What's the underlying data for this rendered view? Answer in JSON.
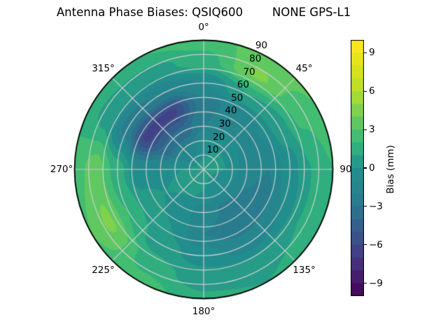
{
  "chart_data": {
    "type": "heatmap",
    "projection": "polar",
    "title": "Antenna Phase Biases: QSIQ600        NONE GPS-L1",
    "angular_axis": {
      "tick_labels": [
        "0°",
        "45°",
        "90",
        "135°",
        "180°",
        "225°",
        "270°",
        "315°"
      ],
      "tick_degrees": [
        0,
        45,
        90,
        135,
        180,
        225,
        270,
        315
      ],
      "direction": "clockwise",
      "zero_location": "top"
    },
    "radial_axis": {
      "tick_labels": [
        "10",
        "20",
        "30",
        "40",
        "50",
        "60",
        "70",
        "80",
        "90"
      ],
      "tick_values": [
        10,
        20,
        30,
        40,
        50,
        60,
        70,
        80,
        90
      ],
      "max": 90,
      "label_angle_deg": 22.5
    },
    "colorbar": {
      "label": "Bias (mm)",
      "tick_labels": [
        "9",
        "6",
        "3",
        "0",
        "−3",
        "−6",
        "−9"
      ],
      "tick_values": [
        9,
        6,
        3,
        0,
        -3,
        -6,
        -9
      ],
      "range": [
        -10,
        10
      ],
      "n_levels": 20,
      "colormap": "viridis"
    },
    "grid": {
      "on": true,
      "color": "rgba(210,210,210,0.95)",
      "outline_color": "#000000"
    },
    "azimuth_deg": [
      0,
      30,
      60,
      90,
      120,
      150,
      180,
      210,
      240,
      270,
      300,
      330
    ],
    "zenith_deg": [
      0,
      15,
      30,
      45,
      60,
      75,
      90
    ],
    "values_mm": [
      [
        0.5,
        -0.5,
        -2.0,
        -2.5,
        -1.0,
        1.5,
        2.5
      ],
      [
        0.5,
        0.0,
        -1.0,
        -1.5,
        1.0,
        4.2,
        3.5
      ],
      [
        0.5,
        0.0,
        -1.0,
        -1.0,
        0.5,
        2.2,
        3.0
      ],
      [
        0.5,
        0.0,
        -1.5,
        -2.0,
        -0.5,
        1.0,
        2.0
      ],
      [
        0.5,
        -0.5,
        -2.0,
        -2.5,
        -1.0,
        1.0,
        2.0
      ],
      [
        0.5,
        -0.5,
        -2.2,
        -2.6,
        -1.5,
        0.5,
        1.0
      ],
      [
        0.5,
        0.0,
        -1.5,
        -2.0,
        -0.5,
        0.5,
        1.2
      ],
      [
        0.5,
        0.2,
        -0.5,
        0.0,
        0.5,
        1.5,
        2.5
      ],
      [
        0.5,
        0.5,
        0.0,
        0.5,
        2.0,
        4.2,
        3.0
      ],
      [
        0.5,
        0.0,
        -1.0,
        -1.0,
        1.5,
        3.5,
        2.5
      ],
      [
        0.5,
        -1.2,
        -3.8,
        -6.3,
        -2.5,
        0.5,
        1.5
      ],
      [
        0.5,
        -1.2,
        -3.8,
        -6.3,
        -2.0,
        0.5,
        2.0
      ]
    ]
  }
}
